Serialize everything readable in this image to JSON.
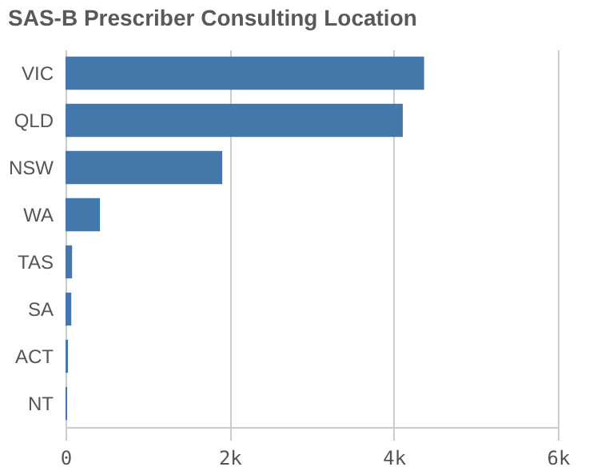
{
  "chart_data": {
    "type": "bar",
    "orientation": "horizontal",
    "title": "SAS-B Prescriber Consulting Location",
    "categories": [
      "VIC",
      "QLD",
      "NSW",
      "WA",
      "TAS",
      "SA",
      "ACT",
      "NT"
    ],
    "values": [
      4370,
      4110,
      1910,
      420,
      80,
      70,
      30,
      20
    ],
    "color": "#4477aa",
    "xlim": [
      0,
      6000
    ],
    "xticks": [
      {
        "value": 0,
        "label": "0"
      },
      {
        "value": 2000,
        "label": "2k"
      },
      {
        "value": 4000,
        "label": "4k"
      },
      {
        "value": 6000,
        "label": "6k"
      }
    ],
    "grid": "x"
  }
}
